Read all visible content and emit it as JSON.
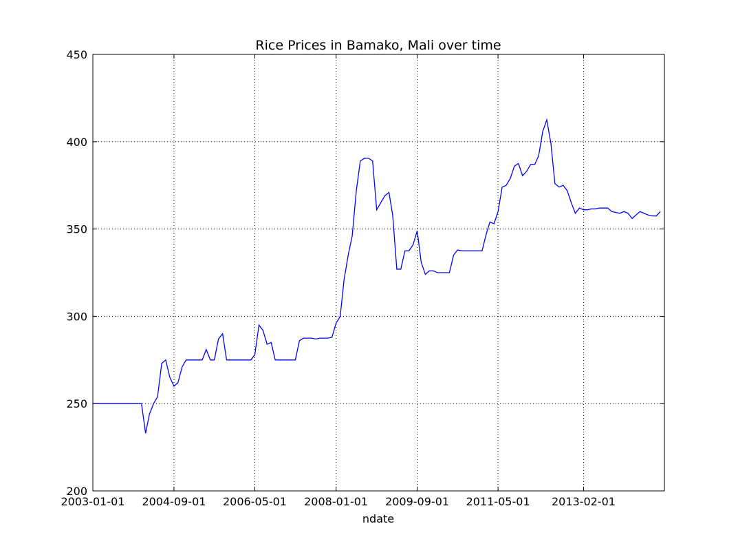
{
  "chart_data": {
    "type": "line",
    "title": "Rice Prices in Bamako, Mali over time",
    "x_label": "ndate",
    "x": [
      "2003-01-01",
      "2003-02-01",
      "2003-03-01",
      "2003-04-01",
      "2003-05-01",
      "2003-06-01",
      "2003-07-01",
      "2003-08-01",
      "2003-09-01",
      "2003-10-01",
      "2003-11-01",
      "2003-12-01",
      "2004-01-01",
      "2004-02-01",
      "2004-03-01",
      "2004-04-01",
      "2004-05-01",
      "2004-06-01",
      "2004-07-01",
      "2004-08-01",
      "2004-09-01",
      "2004-10-01",
      "2004-11-01",
      "2004-12-01",
      "2005-01-01",
      "2005-02-01",
      "2005-03-01",
      "2005-04-01",
      "2005-05-01",
      "2005-06-01",
      "2005-07-01",
      "2005-08-01",
      "2005-09-01",
      "2005-10-01",
      "2005-11-01",
      "2005-12-01",
      "2006-01-01",
      "2006-02-01",
      "2006-03-01",
      "2006-04-01",
      "2006-05-01",
      "2006-06-01",
      "2006-07-01",
      "2006-08-01",
      "2006-09-01",
      "2006-10-01",
      "2006-11-01",
      "2006-12-01",
      "2007-01-01",
      "2007-02-01",
      "2007-03-01",
      "2007-04-01",
      "2007-05-01",
      "2007-06-01",
      "2007-07-01",
      "2007-08-01",
      "2007-09-01",
      "2007-10-01",
      "2007-11-01",
      "2007-12-01",
      "2008-01-01",
      "2008-02-01",
      "2008-03-01",
      "2008-04-01",
      "2008-05-01",
      "2008-06-01",
      "2008-07-01",
      "2008-08-01",
      "2008-09-01",
      "2008-10-01",
      "2008-11-01",
      "2008-12-01",
      "2009-01-01",
      "2009-02-01",
      "2009-03-01",
      "2009-04-01",
      "2009-05-01",
      "2009-06-01",
      "2009-07-01",
      "2009-08-01",
      "2009-09-01",
      "2009-10-01",
      "2009-11-01",
      "2009-12-01",
      "2010-01-01",
      "2010-02-01",
      "2010-03-01",
      "2010-04-01",
      "2010-05-01",
      "2010-06-01",
      "2010-07-01",
      "2010-08-01",
      "2010-09-01",
      "2010-10-01",
      "2010-11-01",
      "2010-12-01",
      "2011-01-01",
      "2011-02-01",
      "2011-03-01",
      "2011-04-01",
      "2011-05-01",
      "2011-06-01",
      "2011-07-01",
      "2011-08-01",
      "2011-09-01",
      "2011-10-01",
      "2011-11-01",
      "2011-12-01",
      "2012-01-01",
      "2012-02-01",
      "2012-03-01",
      "2012-04-01",
      "2012-05-01",
      "2012-06-01",
      "2012-07-01",
      "2012-08-01",
      "2012-09-01",
      "2012-10-01",
      "2012-11-01",
      "2012-12-01",
      "2013-01-01",
      "2013-02-01",
      "2013-03-01",
      "2013-04-01",
      "2013-05-01",
      "2013-06-01",
      "2013-07-01",
      "2013-08-01",
      "2013-09-01",
      "2013-10-01",
      "2013-11-01",
      "2013-12-01",
      "2014-01-01",
      "2014-02-01",
      "2014-03-01",
      "2014-04-01",
      "2014-05-01",
      "2014-06-01",
      "2014-07-01",
      "2014-08-01",
      "2014-09-01"
    ],
    "values": [
      250,
      250,
      250,
      250,
      250,
      250,
      250,
      250,
      250,
      250,
      250,
      250,
      250,
      233,
      244,
      250,
      254,
      273,
      275,
      265,
      260,
      262,
      271,
      275,
      275,
      275,
      275,
      275,
      281,
      275,
      275,
      287,
      290,
      275,
      275,
      275,
      275,
      275,
      275,
      275,
      278,
      295,
      292,
      284,
      285,
      275,
      275,
      275,
      275,
      275,
      275,
      286,
      287.5,
      287.5,
      287.5,
      287,
      287.5,
      287.5,
      287.5,
      288,
      296,
      300,
      321,
      335,
      346,
      372,
      389,
      390.5,
      390.5,
      389,
      361,
      365,
      369,
      371,
      358,
      327,
      327,
      337.5,
      337.5,
      341,
      349,
      331,
      324,
      326,
      326,
      325,
      325,
      325,
      325,
      335,
      338,
      337.5,
      337.5,
      337.5,
      337.5,
      337.5,
      337.5,
      347,
      354,
      353,
      360,
      374,
      375,
      379,
      386,
      387.5,
      380.5,
      383,
      387,
      387,
      392,
      406,
      412.5,
      399,
      376,
      374,
      375,
      372,
      365,
      359,
      362,
      361,
      361,
      361.5,
      361.5,
      362,
      362,
      362,
      360,
      359.5,
      359,
      360,
      359,
      356,
      358,
      360,
      359,
      358,
      357.5,
      357.5,
      360
    ],
    "color": "#0000ff",
    "xlim": [
      "2003-01-01",
      "2014-10-01"
    ],
    "xticks": [
      "2003-01-01",
      "2004-09-01",
      "2006-05-01",
      "2008-01-01",
      "2009-09-01",
      "2011-05-01",
      "2013-02-01"
    ],
    "ylim": [
      200,
      450
    ],
    "yticks": [
      200,
      250,
      300,
      350,
      400,
      450
    ],
    "grid": true
  }
}
